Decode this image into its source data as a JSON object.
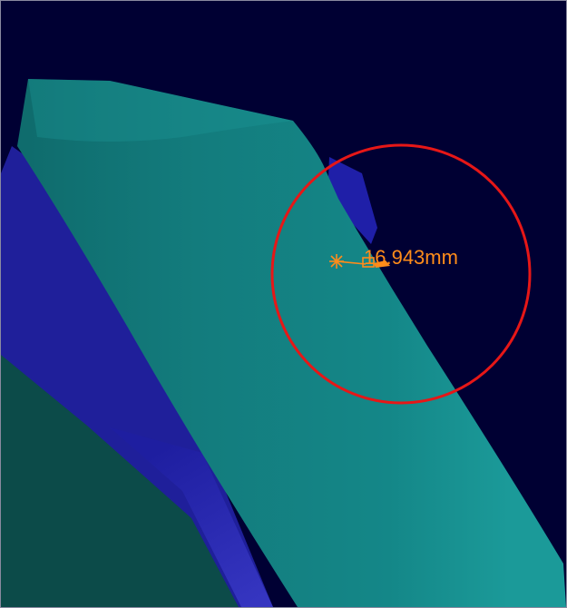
{
  "measurement": {
    "value": "16.943mm"
  },
  "colors": {
    "background": "#000033",
    "surface_teal": "#137f80",
    "surface_blue": "#1f1f9e",
    "surface_dark_teal": "#0c4b49",
    "measure_annotation": "#ff8c1a",
    "highlight_circle": "#e61717"
  }
}
